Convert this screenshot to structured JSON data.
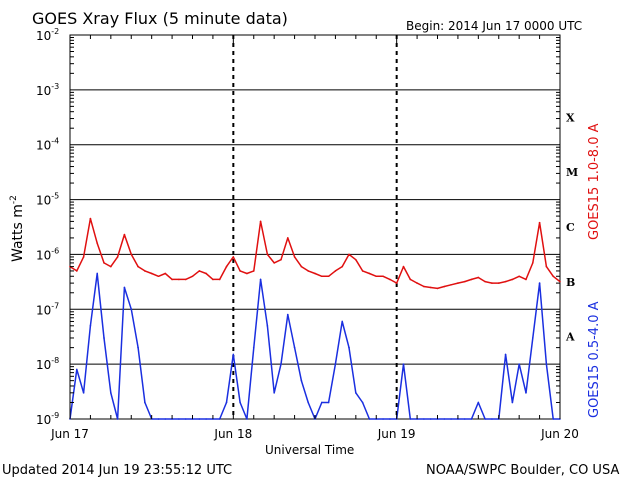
{
  "chart_data": {
    "type": "line",
    "title": "GOES Xray Flux (5 minute data)",
    "begin": "Begin:  2014 Jun 17 0000 UTC",
    "ylabel": "Watts m",
    "ylabel_sup": "-2",
    "xlabel": "Universal Time",
    "y_scale": "log",
    "ylim": [
      1e-09,
      0.01
    ],
    "y_ticks": [
      {
        "base": "10",
        "exp": "-2",
        "value": 0.01
      },
      {
        "base": "10",
        "exp": "-3",
        "value": 0.001
      },
      {
        "base": "10",
        "exp": "-4",
        "value": 0.0001
      },
      {
        "base": "10",
        "exp": "-5",
        "value": 1e-05
      },
      {
        "base": "10",
        "exp": "-6",
        "value": 1e-06
      },
      {
        "base": "10",
        "exp": "-7",
        "value": 1e-07
      },
      {
        "base": "10",
        "exp": "-8",
        "value": 1e-08
      },
      {
        "base": "10",
        "exp": "-9",
        "value": 1e-09
      }
    ],
    "x_ticks": [
      "Jun 17",
      "Jun 18",
      "Jun 19",
      "Jun 20"
    ],
    "flare_classes": [
      {
        "label": "X",
        "level": 0.0001
      },
      {
        "label": "M",
        "level": 1e-05
      },
      {
        "label": "C",
        "level": 1e-06
      },
      {
        "label": "B",
        "level": 1e-07
      },
      {
        "label": "A",
        "level": 1e-08
      }
    ],
    "grid": true,
    "series": [
      {
        "name": "GOES15 1.0-8.0 A",
        "color": "#e01010",
        "x_hours": [
          0,
          1,
          2,
          3,
          4,
          5,
          6,
          7,
          8,
          9,
          10,
          11,
          12,
          13,
          14,
          15,
          16,
          17,
          18,
          19,
          20,
          21,
          22,
          23,
          24,
          25,
          26,
          27,
          28,
          29,
          30,
          31,
          32,
          33,
          34,
          35,
          36,
          37,
          38,
          39,
          40,
          41,
          42,
          43,
          44,
          45,
          46,
          47,
          48,
          49,
          50,
          51,
          52,
          53,
          54,
          55,
          56,
          57,
          58,
          59,
          60,
          61,
          62,
          63,
          64,
          65,
          66,
          67,
          68,
          69,
          70,
          71,
          72
        ],
        "values": [
          6e-07,
          5e-07,
          9e-07,
          4.5e-06,
          1.6e-06,
          7e-07,
          6e-07,
          9e-07,
          2.3e-06,
          1e-06,
          6e-07,
          5e-07,
          4.5e-07,
          4e-07,
          4.5e-07,
          3.5e-07,
          3.5e-07,
          3.5e-07,
          4e-07,
          5e-07,
          4.5e-07,
          3.5e-07,
          3.5e-07,
          6e-07,
          9e-07,
          5e-07,
          4.5e-07,
          5e-07,
          4e-06,
          1e-06,
          7e-07,
          8e-07,
          2e-06,
          9e-07,
          6e-07,
          5e-07,
          4.5e-07,
          4e-07,
          4e-07,
          5e-07,
          6e-07,
          1e-06,
          8e-07,
          5e-07,
          4.5e-07,
          4e-07,
          4e-07,
          3.5e-07,
          3e-07,
          6e-07,
          3.5e-07,
          3e-07,
          2.6e-07,
          2.5e-07,
          2.4e-07,
          2.6e-07,
          2.8e-07,
          3e-07,
          3.2e-07,
          3.5e-07,
          3.8e-07,
          3.2e-07,
          3e-07,
          3e-07,
          3.2e-07,
          3.5e-07,
          4e-07,
          3.5e-07,
          7e-07,
          3.8e-06,
          6e-07,
          4e-07,
          3.2e-07
        ]
      },
      {
        "name": "GOES15 0.5-4.0 A",
        "color": "#1a2fe0",
        "x_hours": [
          0,
          1,
          2,
          3,
          4,
          5,
          6,
          7,
          8,
          9,
          10,
          11,
          12,
          13,
          14,
          15,
          16,
          17,
          18,
          19,
          20,
          21,
          22,
          23,
          24,
          25,
          26,
          27,
          28,
          29,
          30,
          31,
          32,
          33,
          34,
          35,
          36,
          37,
          38,
          39,
          40,
          41,
          42,
          43,
          44,
          45,
          46,
          47,
          48,
          49,
          50,
          51,
          52,
          53,
          54,
          55,
          56,
          57,
          58,
          59,
          60,
          61,
          62,
          63,
          64,
          65,
          66,
          67,
          68,
          69,
          70,
          71,
          72
        ],
        "values": [
          1e-09,
          8e-09,
          3e-09,
          5e-08,
          4.5e-07,
          3e-08,
          3e-09,
          1e-09,
          2.5e-07,
          1e-07,
          2e-08,
          2e-09,
          1e-09,
          1e-09,
          1e-09,
          1e-09,
          1e-09,
          1e-09,
          1e-09,
          1e-09,
          1e-09,
          1e-09,
          1e-09,
          2e-09,
          1.5e-08,
          2e-09,
          1e-09,
          2e-08,
          3.5e-07,
          5e-08,
          3e-09,
          1e-08,
          8e-08,
          2e-08,
          5e-09,
          2e-09,
          1e-09,
          2e-09,
          2e-09,
          1e-08,
          6e-08,
          2e-08,
          3e-09,
          2e-09,
          1e-09,
          1e-09,
          1e-09,
          1e-09,
          1e-09,
          1e-08,
          1e-09,
          1e-09,
          1e-09,
          1e-09,
          1e-09,
          1e-09,
          1e-09,
          1e-09,
          1e-09,
          1e-09,
          2e-09,
          1e-09,
          1e-09,
          1e-09,
          1.5e-08,
          2e-09,
          1e-08,
          3e-09,
          3e-08,
          3e-07,
          1e-08,
          1e-09,
          1e-09
        ]
      }
    ]
  },
  "footer": {
    "updated": "Updated 2014 Jun 19 23:55:12 UTC",
    "source": "NOAA/SWPC Boulder, CO USA"
  },
  "colors": {
    "grid": "#000000",
    "red_series": "#e01010",
    "blue_series": "#1a2fe0"
  }
}
